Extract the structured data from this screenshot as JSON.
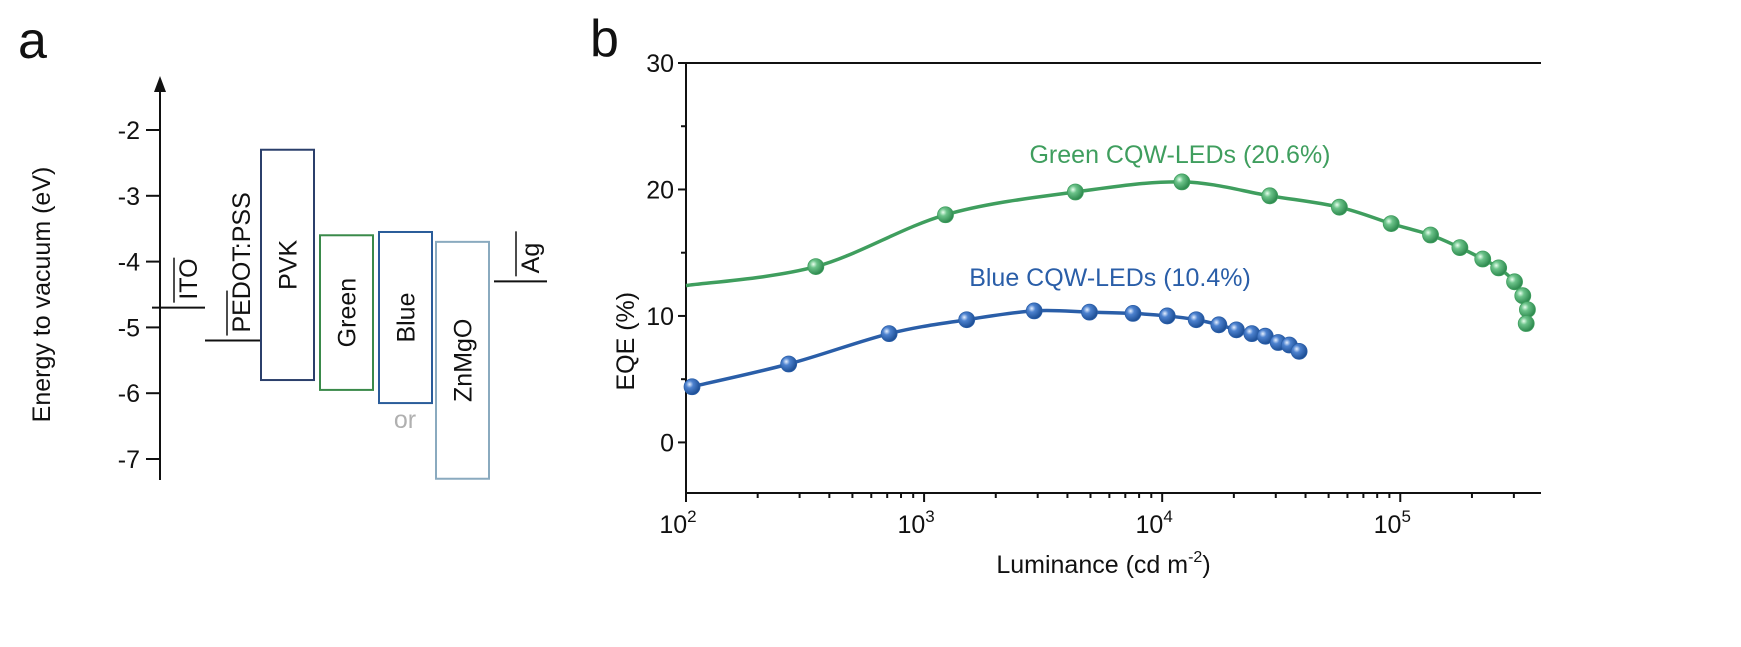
{
  "panels": {
    "a": "a",
    "b": "b"
  },
  "chart_data": [
    {
      "type": "bar",
      "ylabel": "Energy to vacuum (eV)",
      "y_ticks": [
        "-2",
        "-3",
        "-4",
        "-5",
        "-6",
        "-7"
      ],
      "ylim": [
        -7.3,
        -1.3
      ],
      "levels": [
        {
          "name": "ITO",
          "value": -4.7,
          "color": "#111111"
        },
        {
          "name": "PEDOT:PSS",
          "value": -5.2,
          "color": "#111111"
        },
        {
          "name": "Ag",
          "value": -4.3,
          "color": "#111111"
        }
      ],
      "bands": [
        {
          "name": "PVK",
          "top": -2.3,
          "bottom": -5.8,
          "color": "#2b3f6b"
        },
        {
          "name": "Green",
          "top": -3.6,
          "bottom": -5.95,
          "color": "#3a8a4a"
        },
        {
          "name": "Blue",
          "top": -3.55,
          "bottom": -6.15,
          "color": "#2a5c9a"
        },
        {
          "name": "ZnMgO",
          "top": -3.7,
          "bottom": -7.3,
          "color": "#8aaabf"
        }
      ],
      "annotation": "or",
      "annotation_color": "#b0b0b0"
    },
    {
      "type": "line",
      "xlabel": "Luminance (cd m",
      "xlabel_sup": "-2",
      "xlabel_end": ")",
      "ylabel": "EQE (%)",
      "x_scale": "log",
      "xlim": [
        100,
        390000
      ],
      "ylim": [
        -4,
        30
      ],
      "y_ticks": [
        "0",
        "10",
        "20",
        "30"
      ],
      "x_ticks": [
        {
          "base": "10",
          "exp": "2"
        },
        {
          "base": "10",
          "exp": "3"
        },
        {
          "base": "10",
          "exp": "4"
        },
        {
          "base": "10",
          "exp": "5"
        }
      ],
      "grid": false,
      "series": [
        {
          "name": "Green CQW-LEDs (20.6%)",
          "color": "#3f9e5e",
          "curve_start": [
            100,
            12.4
          ],
          "x": [
            351,
            1230,
            4320,
            12100,
            28300,
            55500,
            91600,
            134000,
            178000,
            222000,
            259000,
            302000,
            327000,
            342000,
            338000
          ],
          "y": [
            13.9,
            18.0,
            19.8,
            20.6,
            19.5,
            18.6,
            17.3,
            16.4,
            15.4,
            14.5,
            13.8,
            12.7,
            11.6,
            10.5,
            9.4
          ]
        },
        {
          "name": "Blue CQW-LEDs (10.4%)",
          "color": "#2a5ea8",
          "curve_start": [
            100,
            4.3
          ],
          "x": [
            106,
            270,
            713,
            1510,
            2900,
            4950,
            7540,
            10500,
            13900,
            17300,
            20500,
            23800,
            27100,
            30700,
            34200,
            37600
          ],
          "y": [
            4.4,
            6.2,
            8.6,
            9.7,
            10.4,
            10.3,
            10.2,
            10.0,
            9.7,
            9.3,
            8.9,
            8.6,
            8.4,
            7.9,
            7.7,
            7.2
          ]
        }
      ]
    }
  ]
}
